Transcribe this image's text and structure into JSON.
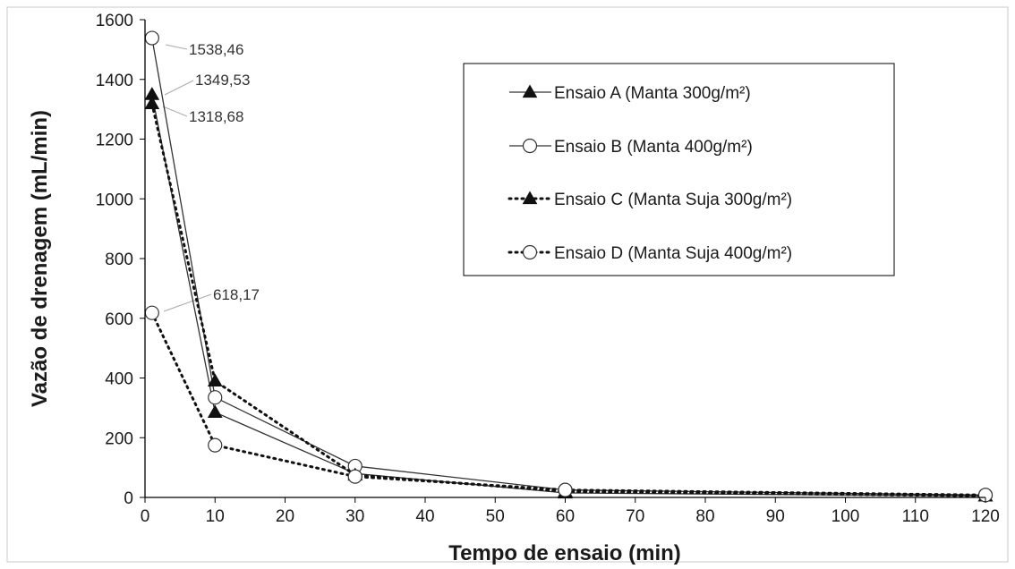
{
  "chart_data": {
    "type": "line",
    "title": "",
    "xlabel": "Tempo de ensaio (min)",
    "ylabel": "Vazão de drenagem (mL/min)",
    "xlim": [
      0,
      120
    ],
    "ylim": [
      0,
      1600
    ],
    "x_ticks": [
      "0",
      "10",
      "20",
      "30",
      "40",
      "50",
      "60",
      "70",
      "80",
      "90",
      "100",
      "110",
      "120"
    ],
    "y_ticks": [
      "0",
      "200",
      "400",
      "600",
      "800",
      "1000",
      "1200",
      "1400",
      "1600"
    ],
    "grid": false,
    "legend_position": "top-right",
    "series": [
      {
        "name": "Ensaio A (Manta 300g/m²)",
        "marker": "triangle-filled",
        "line": "solid",
        "x": [
          1,
          10,
          30,
          60,
          120
        ],
        "y": [
          1349.53,
          285,
          80,
          15,
          5
        ]
      },
      {
        "name": "Ensaio B (Manta 400g/m²)",
        "marker": "circle-open",
        "line": "solid",
        "x": [
          1,
          10,
          30,
          60,
          120
        ],
        "y": [
          1538.46,
          335,
          105,
          25,
          8
        ]
      },
      {
        "name": "Ensaio C (Manta Suja 300g/m²)",
        "marker": "triangle-filled",
        "line": "dotted",
        "x": [
          1,
          10,
          30,
          60,
          120
        ],
        "y": [
          1318.68,
          390,
          75,
          20,
          5
        ]
      },
      {
        "name": "Ensaio D (Manta Suja 400g/m²)",
        "marker": "circle-open",
        "line": "dotted",
        "x": [
          1,
          10,
          30,
          60,
          120
        ],
        "y": [
          618.17,
          175,
          70,
          25,
          8
        ]
      }
    ],
    "annotations": [
      {
        "text": "1538,46",
        "x": 1,
        "y": 1538.46
      },
      {
        "text": "1349,53",
        "x": 1,
        "y": 1349.53
      },
      {
        "text": "1318,68",
        "x": 1,
        "y": 1318.68
      },
      {
        "text": "618,17",
        "x": 1,
        "y": 618.17
      }
    ]
  }
}
